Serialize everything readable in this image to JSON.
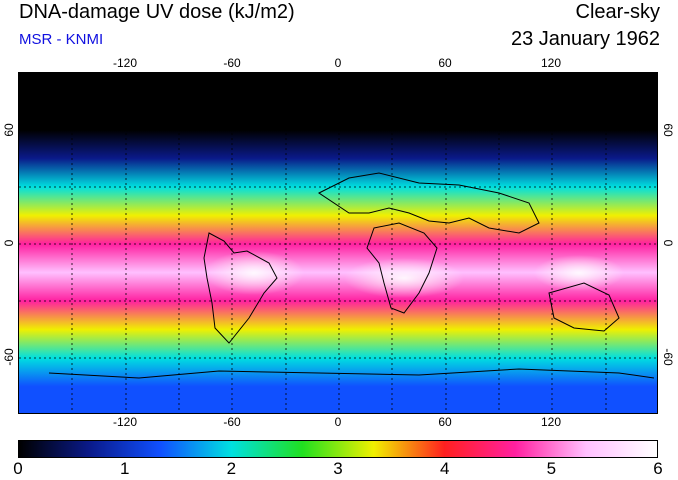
{
  "header": {
    "title": "DNA-damage UV dose (kJ/m2)",
    "subtitle": "MSR - KNMI",
    "sky_condition": "Clear-sky",
    "date": "23 January 1962"
  },
  "map": {
    "longitude_ticks": [
      "-120",
      "-60",
      "0",
      "60",
      "120"
    ],
    "longitude_values": [
      -120,
      -60,
      0,
      60,
      120
    ],
    "latitude_ticks": [
      "60",
      "0",
      "-60"
    ],
    "latitude_values": [
      60,
      0,
      -60
    ],
    "lon_range": [
      -180,
      180
    ],
    "lat_range": [
      90,
      -90
    ],
    "background_color": "#000000",
    "grid_style": "dashed"
  },
  "colorbar": {
    "labels": [
      "0",
      "1",
      "2",
      "3",
      "4",
      "5",
      "6"
    ],
    "values": [
      0,
      1,
      2,
      3,
      4,
      5,
      6
    ],
    "min": 0,
    "max": 6,
    "colors": [
      "#000000",
      "#0a1a8a",
      "#1050ff",
      "#00e0e0",
      "#20e020",
      "#f0f000",
      "#ff2020",
      "#ff20a0",
      "#ffc0ff",
      "#ffffff"
    ]
  },
  "chart_data": {
    "type": "heatmap",
    "title": "DNA-damage UV dose (kJ/m2)",
    "variable": "DNA-damage UV dose",
    "units": "kJ/m2",
    "condition": "Clear-sky",
    "date": "23 January 1962",
    "x": "longitude",
    "y": "latitude",
    "xlim": [
      -180,
      180
    ],
    "ylim": [
      -90,
      90
    ],
    "zonal_profile": [
      {
        "lat": 90,
        "dose": 0.0
      },
      {
        "lat": 60,
        "dose": 0.1
      },
      {
        "lat": 45,
        "dose": 0.7
      },
      {
        "lat": 30,
        "dose": 2.2
      },
      {
        "lat": 15,
        "dose": 3.6
      },
      {
        "lat": 0,
        "dose": 4.4
      },
      {
        "lat": -15,
        "dose": 5.3
      },
      {
        "lat": -30,
        "dose": 4.6
      },
      {
        "lat": -45,
        "dose": 3.0
      },
      {
        "lat": -60,
        "dose": 1.8
      },
      {
        "lat": -75,
        "dose": 1.3
      },
      {
        "lat": -90,
        "dose": 1.0
      }
    ],
    "colorbar_range": [
      0,
      6
    ]
  }
}
